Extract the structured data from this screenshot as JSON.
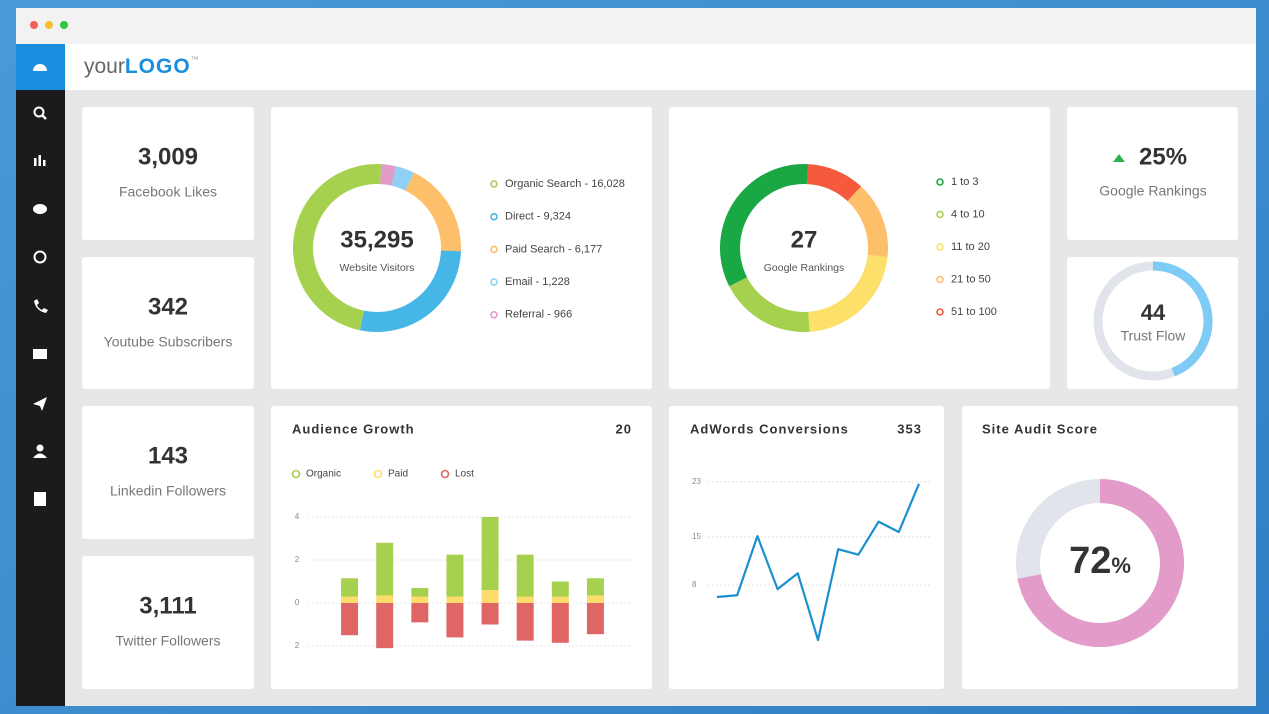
{
  "window": {
    "logo_prefix": "your",
    "logo_main": "LOGO",
    "logo_mark": "™"
  },
  "cards": [
    {
      "value": "3,009",
      "label": "Facebook Likes"
    },
    {
      "value": "342",
      "label": "Youtube Subscribers"
    },
    {
      "value": "143",
      "label": "Linkedin Followers"
    },
    {
      "value": "3,111",
      "label": "Twitter Followers"
    }
  ],
  "rankings_change": {
    "value": "25%",
    "label": "Google Rankings"
  },
  "chart_data": [
    {
      "type": "donut",
      "center_value": "35,295",
      "center_label": "Website Visitors",
      "categories": [
        "Organic Search - 16,028",
        "Direct - 9,324",
        "Paid Search - 6,177",
        "Email - 1,228",
        "Referral - 966"
      ],
      "values": [
        16028,
        9324,
        6177,
        1228,
        966
      ],
      "colors": [
        "#a6d14f",
        "#45b6e5",
        "#fdbf6a",
        "#8fd1f5",
        "#e39bc9"
      ]
    },
    {
      "type": "donut",
      "center_value": "27",
      "center_label": "Google Rankings",
      "categories": [
        "1 to 3",
        "4 to 10",
        "11 to 20",
        "21 to 50",
        "51 to 100"
      ],
      "values": [
        9,
        5,
        6,
        4,
        3
      ],
      "colors": [
        "#1aa845",
        "#a6d14f",
        "#fde06a",
        "#fdbf6a",
        "#f55a3c"
      ]
    },
    {
      "type": "gauge",
      "value": 44,
      "center_label": "Trust Flow",
      "ylim": [
        0,
        100
      ],
      "color": "#7ecbf5"
    },
    {
      "type": "bar",
      "stacked": true,
      "title": "Audience Growth",
      "total": "20",
      "categories": [
        null,
        null,
        null,
        null,
        null,
        null,
        null,
        null
      ],
      "series": [
        {
          "name": "Organic",
          "color": "#a6d14f",
          "values": [
            0.85,
            2.45,
            0.4,
            1.95,
            3.4,
            1.95,
            0.7,
            0.8
          ]
        },
        {
          "name": "Paid",
          "color": "#fddc6c",
          "values": [
            0.3,
            0.35,
            0.3,
            0.3,
            0.6,
            0.3,
            0.3,
            0.35
          ]
        },
        {
          "name": "Lost",
          "color": "#e06666",
          "values": [
            -1.5,
            -2.1,
            -0.9,
            -1.6,
            -1.0,
            -1.75,
            -1.85,
            -1.45
          ]
        }
      ],
      "ylim": [
        -2.2,
        4.2
      ],
      "yticks": [
        4,
        2,
        0,
        {
          "value": -2,
          "label": "2"
        }
      ],
      "grid": true
    },
    {
      "type": "line",
      "title": "AdWords Conversions",
      "total": "353",
      "categories": [
        null,
        null,
        null,
        null,
        null,
        null,
        null,
        null,
        null,
        null,
        null
      ],
      "values": [
        6.25,
        6.5,
        15.1,
        7.4,
        9.7,
        0,
        13.2,
        12.4,
        17.2,
        15.7,
        22.7
      ],
      "color": "#1b8fd0",
      "ylim": [
        0,
        25
      ],
      "yticks": [
        23,
        15,
        8
      ],
      "grid": true
    },
    {
      "type": "gauge",
      "title": "Site Audit Score",
      "value": 72,
      "unit": "%",
      "ylim": [
        0,
        100
      ],
      "color": "#e39bc9"
    }
  ]
}
